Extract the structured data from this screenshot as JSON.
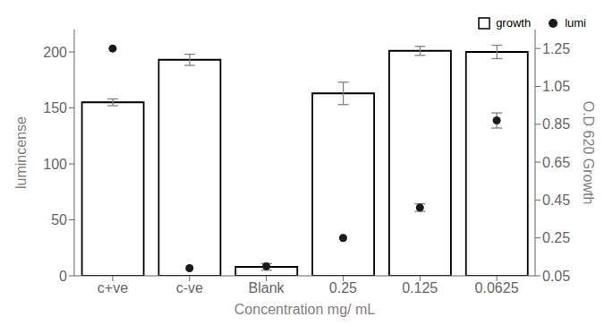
{
  "chart_data": {
    "type": "bar",
    "xlabel": "Concentration mg/ mL",
    "ylabel": "lumincense",
    "y2label": "O.D 620 Growth",
    "categories": [
      "c+ve",
      "c-ve",
      "Blank",
      "0.25",
      "0.125",
      "0.0625"
    ],
    "series": [
      {
        "name": "growth",
        "type": "bar",
        "color": "#ffffff",
        "values": [
          155,
          193,
          8,
          163,
          201,
          200
        ],
        "errors": [
          3,
          5,
          3,
          10,
          4,
          6
        ]
      },
      {
        "name": "lumi",
        "type": "scatter",
        "axis": "y2",
        "color": "#1a1a1a",
        "marker": "circle",
        "values": [
          1.25,
          0.09,
          0.1,
          0.25,
          0.41,
          0.87
        ],
        "errors": [
          null,
          null,
          null,
          null,
          0.02,
          0.04
        ]
      }
    ],
    "ylim": [
      0,
      220
    ],
    "yticks": [
      0,
      50,
      100,
      150,
      200
    ],
    "y2lim": [
      0.05,
      1.35
    ],
    "y2ticks": [
      0.05,
      0.25,
      0.45,
      0.65,
      0.85,
      1.05,
      1.25
    ],
    "grid": false,
    "legend": "upper right"
  }
}
